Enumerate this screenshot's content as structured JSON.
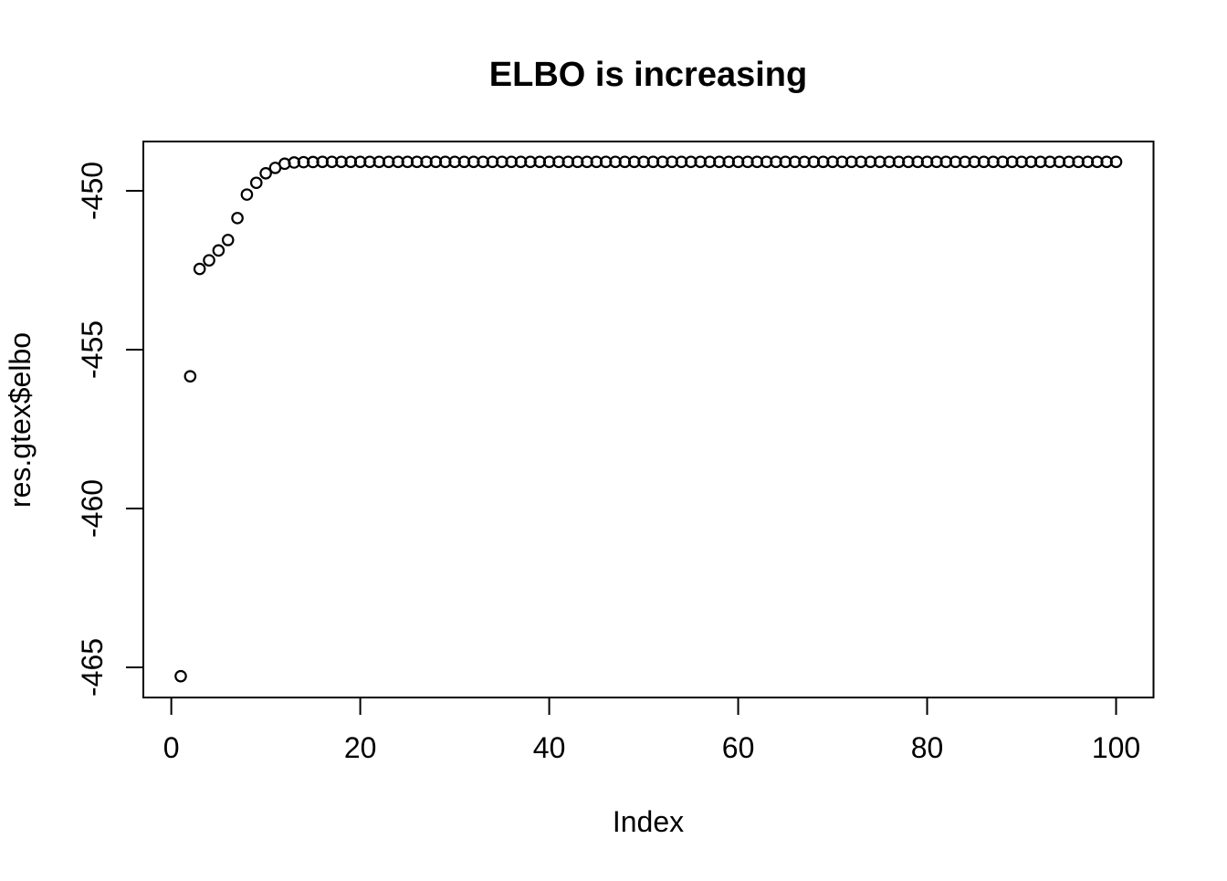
{
  "chart_data": {
    "type": "scatter",
    "title": "ELBO is increasing",
    "xlabel": "Index",
    "ylabel": "res.gtex$elbo",
    "marker": "open-circle",
    "grid": false,
    "legend": "none",
    "colors": {
      "foreground": "#000000",
      "background": "#ffffff"
    },
    "xticks": [
      0,
      20,
      40,
      60,
      80,
      100
    ],
    "yticks": [
      -465,
      -460,
      -455,
      -450
    ],
    "xlim": [
      -2.96,
      103.96
    ],
    "ylim": [
      -465.95,
      -448.45
    ],
    "x": [
      1,
      2,
      3,
      4,
      5,
      6,
      7,
      8,
      9,
      10,
      11,
      12,
      13,
      14,
      15,
      16,
      17,
      18,
      19,
      20,
      21,
      22,
      23,
      24,
      25,
      26,
      27,
      28,
      29,
      30,
      31,
      32,
      33,
      34,
      35,
      36,
      37,
      38,
      39,
      40,
      41,
      42,
      43,
      44,
      45,
      46,
      47,
      48,
      49,
      50,
      51,
      52,
      53,
      54,
      55,
      56,
      57,
      58,
      59,
      60,
      61,
      62,
      63,
      64,
      65,
      66,
      67,
      68,
      69,
      70,
      71,
      72,
      73,
      74,
      75,
      76,
      77,
      78,
      79,
      80,
      81,
      82,
      83,
      84,
      85,
      86,
      87,
      88,
      89,
      90,
      91,
      92,
      93,
      94,
      95,
      96,
      97,
      98,
      99,
      100
    ],
    "y": [
      -465.28,
      -455.84,
      -452.46,
      -452.19,
      -451.88,
      -451.55,
      -450.86,
      -450.12,
      -449.75,
      -449.45,
      -449.28,
      -449.15,
      -449.11,
      -449.1,
      -449.095,
      -449.09,
      -449.09,
      -449.09,
      -449.09,
      -449.09,
      -449.09,
      -449.09,
      -449.09,
      -449.09,
      -449.09,
      -449.09,
      -449.09,
      -449.09,
      -449.09,
      -449.09,
      -449.09,
      -449.09,
      -449.09,
      -449.09,
      -449.09,
      -449.09,
      -449.09,
      -449.09,
      -449.09,
      -449.09,
      -449.09,
      -449.09,
      -449.09,
      -449.09,
      -449.09,
      -449.09,
      -449.09,
      -449.09,
      -449.09,
      -449.09,
      -449.09,
      -449.09,
      -449.09,
      -449.09,
      -449.09,
      -449.09,
      -449.09,
      -449.09,
      -449.09,
      -449.09,
      -449.09,
      -449.09,
      -449.09,
      -449.09,
      -449.09,
      -449.09,
      -449.09,
      -449.09,
      -449.09,
      -449.09,
      -449.09,
      -449.09,
      -449.09,
      -449.09,
      -449.09,
      -449.09,
      -449.09,
      -449.09,
      -449.09,
      -449.09,
      -449.09,
      -449.09,
      -449.09,
      -449.09,
      -449.09,
      -449.09,
      -449.09,
      -449.09,
      -449.09,
      -449.09,
      -449.09,
      -449.09,
      -449.09,
      -449.09,
      -449.09,
      -449.09,
      -449.09,
      -449.09,
      -449.09,
      -449.09
    ]
  }
}
